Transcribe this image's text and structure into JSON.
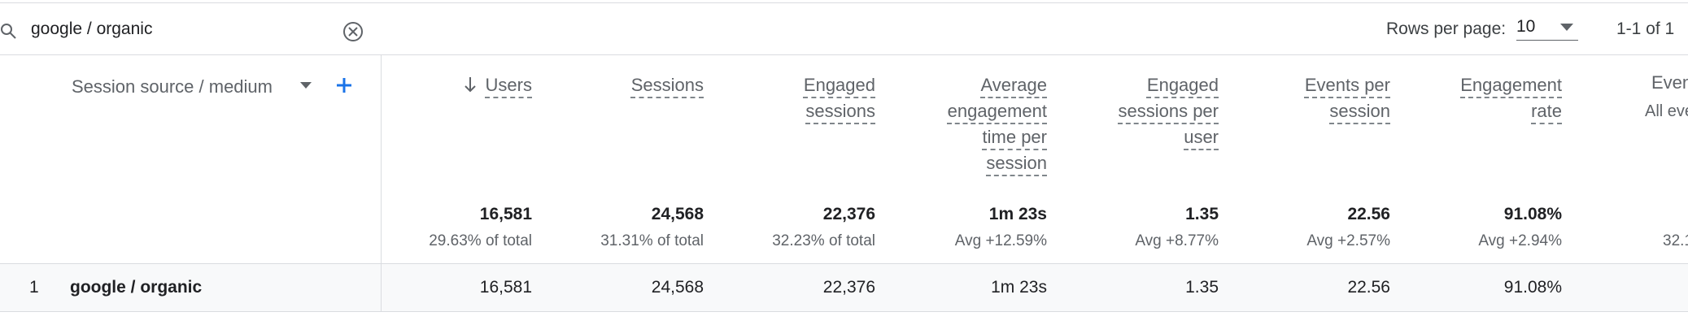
{
  "search": {
    "query": "google / organic"
  },
  "pagination": {
    "rows_per_page_label": "Rows per page:",
    "rows_per_page": "10",
    "range": "1-1 of 1"
  },
  "table": {
    "dimension_header": "Session source / medium",
    "columns": [
      {
        "header": "Users",
        "total": "16,581",
        "total_note": "29.63% of total"
      },
      {
        "header": "Sessions",
        "total": "24,568",
        "total_note": "31.31% of total"
      },
      {
        "header": "Engaged sessions",
        "total": "22,376",
        "total_note": "32.23% of total"
      },
      {
        "header": "Average engagement time per session",
        "total": "1m 23s",
        "total_note": "Avg +12.59%"
      },
      {
        "header": "Engaged sessions per user",
        "total": "1.35",
        "total_note": "Avg +8.77%"
      },
      {
        "header": "Events per session",
        "total": "22.56",
        "total_note": "Avg +2.57%"
      },
      {
        "header": "Engagement rate",
        "total": "91.08%",
        "total_note": "Avg +2.94%"
      }
    ],
    "partial_column": {
      "header": "Even",
      "subheader": "All eve",
      "total": "32.1"
    },
    "rows": [
      {
        "index": "1",
        "dimension": "google / organic",
        "values": [
          "16,581",
          "24,568",
          "22,376",
          "1m 23s",
          "1.35",
          "22.56",
          "91.08%"
        ]
      }
    ]
  }
}
